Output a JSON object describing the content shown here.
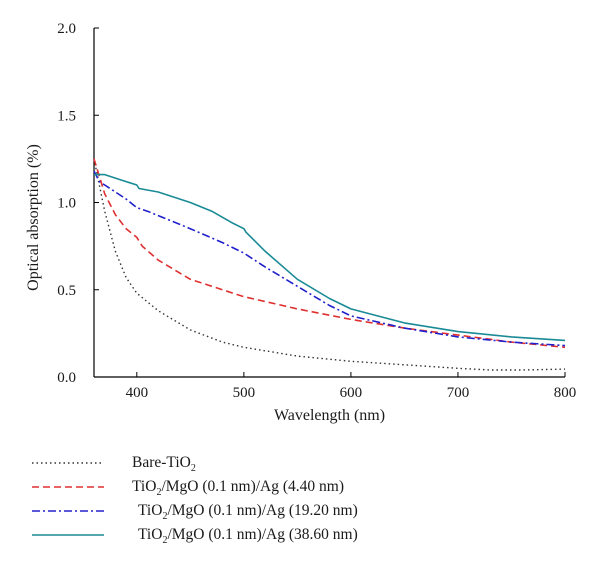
{
  "chart_data": {
    "type": "line",
    "xlabel": "Wavelength (nm)",
    "ylabel": "Optical absorption (%)",
    "xlim": [
      360,
      800
    ],
    "ylim": [
      0,
      2.0
    ],
    "x_ticks": [
      400,
      500,
      600,
      700,
      800
    ],
    "y_ticks": [
      "0.0",
      "0.5",
      "1.0",
      "1.5",
      "2.0"
    ],
    "grid": false,
    "legend_position": "bottom",
    "series": [
      {
        "name": "Bare-TiO2",
        "legend": {
          "pre": "Bare-TiO",
          "sub": "2",
          "post": ""
        },
        "color": "#333333",
        "style": "dotted",
        "x": [
          360,
          370,
          380,
          390,
          400,
          420,
          450,
          480,
          500,
          550,
          600,
          650,
          700,
          730,
          760,
          800
        ],
        "y": [
          1.25,
          0.95,
          0.72,
          0.57,
          0.48,
          0.38,
          0.27,
          0.2,
          0.17,
          0.12,
          0.09,
          0.07,
          0.05,
          0.04,
          0.04,
          0.045
        ]
      },
      {
        "name": "TiO2/MgO (0.1 nm)/Ag (4.40 nm)",
        "legend": {
          "pre": "TiO",
          "sub": "2",
          "post": "/MgO (0.1 nm)/Ag (4.40 nm)"
        },
        "color": "#e03030",
        "style": "dashed",
        "x": [
          360,
          365,
          370,
          380,
          390,
          400,
          405,
          420,
          450,
          500,
          550,
          600,
          650,
          700,
          750,
          800
        ],
        "y": [
          1.25,
          1.15,
          1.05,
          0.93,
          0.85,
          0.8,
          0.75,
          0.67,
          0.56,
          0.46,
          0.39,
          0.33,
          0.28,
          0.24,
          0.2,
          0.17
        ]
      },
      {
        "name": "TiO2/MgO (0.1 nm)/Ag (19.20 nm)",
        "legend": {
          "pre": "TiO",
          "sub": "2",
          "post": "/MgO (0.1 nm)/Ag (19.20 nm)"
        },
        "color": "#2020cc",
        "style": "dashdot",
        "x": [
          360,
          365,
          370,
          380,
          390,
          400,
          410,
          450,
          480,
          500,
          520,
          550,
          580,
          600,
          650,
          700,
          750,
          800
        ],
        "y": [
          1.18,
          1.12,
          1.1,
          1.06,
          1.02,
          0.97,
          0.95,
          0.85,
          0.77,
          0.71,
          0.63,
          0.52,
          0.41,
          0.35,
          0.28,
          0.23,
          0.2,
          0.18
        ]
      },
      {
        "name": "TiO2/MgO (0.1 nm)/Ag (38.60 nm)",
        "legend": {
          "pre": "TiO",
          "sub": "2",
          "post": "/MgO (0.1 nm)/Ag (38.60 nm)"
        },
        "color": "#1a8b96",
        "style": "solid",
        "x": [
          360,
          370,
          380,
          390,
          400,
          402,
          420,
          450,
          470,
          490,
          500,
          502,
          520,
          550,
          580,
          600,
          650,
          700,
          750,
          800
        ],
        "y": [
          1.16,
          1.16,
          1.14,
          1.12,
          1.1,
          1.08,
          1.06,
          1.0,
          0.95,
          0.88,
          0.85,
          0.83,
          0.72,
          0.56,
          0.45,
          0.39,
          0.31,
          0.26,
          0.23,
          0.21
        ]
      }
    ]
  }
}
